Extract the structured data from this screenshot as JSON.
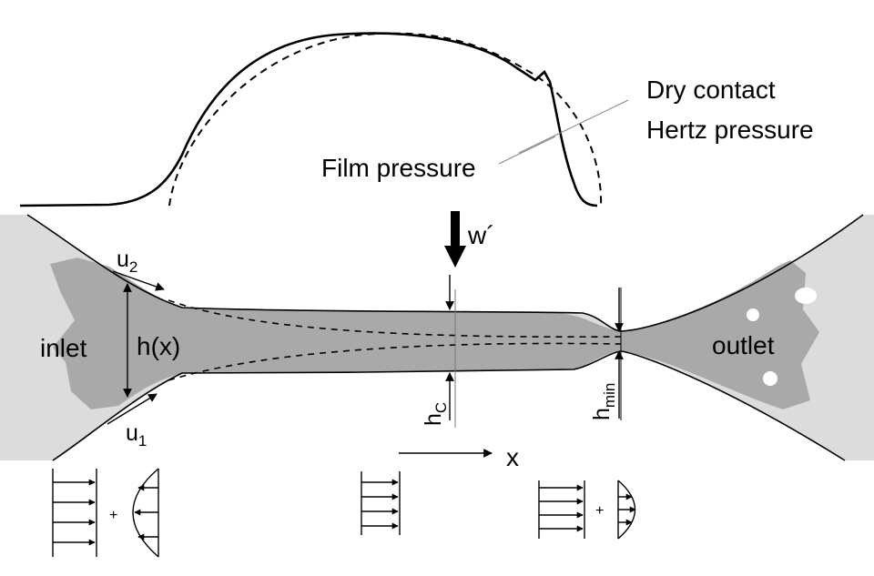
{
  "labels": {
    "dry_contact": "Dry contact",
    "hertz_pressure": "Hertz pressure",
    "film_pressure": "Film pressure",
    "load": "w´",
    "inlet": "inlet",
    "outlet": "outlet",
    "gap": "h(x)",
    "u1_base": "u",
    "u1_sub": "1",
    "u2_base": "u",
    "u2_sub": "2",
    "hc_base": "h",
    "hc_sub": "C",
    "hmin_base": "h",
    "hmin_sub": "min",
    "x_axis": "x",
    "plus_1": "+",
    "plus_2": "+"
  },
  "colors": {
    "background": "#ffffff",
    "solid_bodies": "#dcdcdc",
    "lubricant": "#a9a9a9",
    "ink": "#000000"
  },
  "icons": {
    "load_arrow": "down-arrow-icon",
    "velocity_arrows": "right-arrow-icon"
  }
}
